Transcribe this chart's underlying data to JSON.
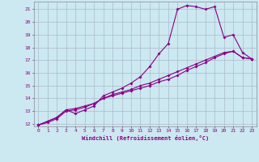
{
  "xlabel": "Windchill (Refroidissement éolien,°C)",
  "background_color": "#cce8f0",
  "grid_color": "#aabbcc",
  "line_color": "#880088",
  "xlim": [
    -0.5,
    23.5
  ],
  "ylim": [
    11.8,
    21.6
  ],
  "yticks": [
    12,
    13,
    14,
    15,
    16,
    17,
    18,
    19,
    20,
    21
  ],
  "xticks": [
    0,
    1,
    2,
    3,
    4,
    5,
    6,
    7,
    8,
    9,
    10,
    11,
    12,
    13,
    14,
    15,
    16,
    17,
    18,
    19,
    20,
    21,
    22,
    23
  ],
  "line1_x": [
    0,
    1,
    2,
    3,
    4,
    5,
    6,
    7,
    8,
    9,
    10,
    11,
    12,
    13,
    14,
    15,
    16,
    17,
    18,
    19,
    20,
    21,
    22,
    23
  ],
  "line1_y": [
    11.9,
    12.2,
    12.5,
    13.1,
    12.8,
    13.1,
    13.4,
    14.2,
    14.5,
    14.8,
    15.2,
    15.7,
    16.5,
    17.5,
    18.3,
    21.0,
    21.3,
    21.2,
    21.0,
    21.2,
    18.8,
    19.0,
    17.6,
    17.1
  ],
  "line2_x": [
    0,
    1,
    2,
    3,
    4,
    5,
    6,
    7,
    8,
    9,
    10,
    11,
    12,
    13,
    14,
    15,
    16,
    17,
    18,
    19,
    20,
    21,
    22,
    23
  ],
  "line2_y": [
    11.9,
    12.2,
    12.5,
    13.1,
    13.2,
    13.4,
    13.6,
    14.0,
    14.2,
    14.4,
    14.6,
    14.8,
    15.0,
    15.3,
    15.5,
    15.8,
    16.2,
    16.5,
    16.8,
    17.2,
    17.5,
    17.7,
    17.2,
    17.1
  ],
  "line3_x": [
    0,
    1,
    2,
    3,
    4,
    5,
    6,
    7,
    8,
    9,
    10,
    11,
    12,
    13,
    14,
    15,
    16,
    17,
    18,
    19,
    20,
    21,
    22,
    23
  ],
  "line3_y": [
    11.9,
    12.1,
    12.4,
    13.0,
    13.1,
    13.3,
    13.6,
    14.0,
    14.3,
    14.5,
    14.7,
    15.0,
    15.2,
    15.5,
    15.8,
    16.1,
    16.4,
    16.7,
    17.0,
    17.3,
    17.6,
    17.7,
    17.2,
    17.1
  ]
}
